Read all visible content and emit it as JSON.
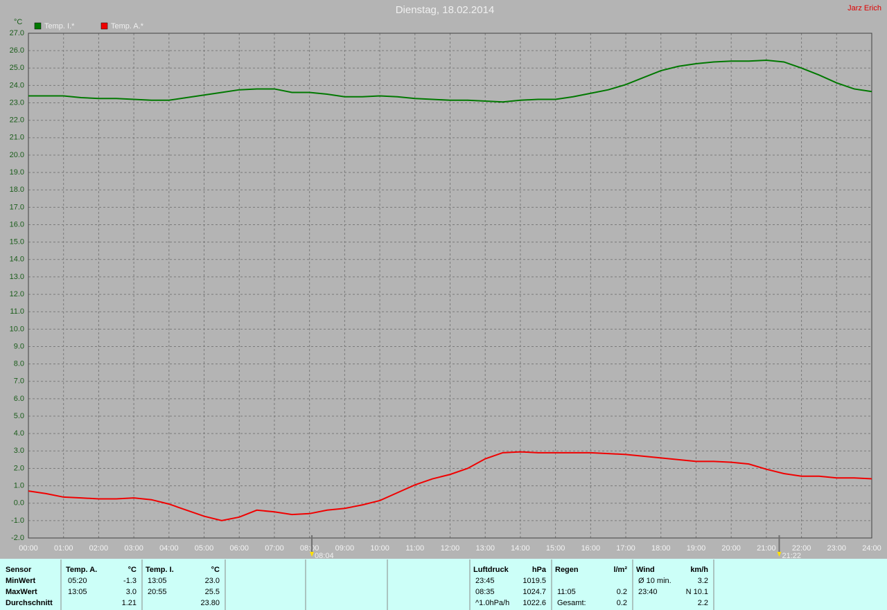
{
  "chart_data": {
    "type": "line",
    "title": "Dienstag, 18.02.2014",
    "author": "Jarz Erich",
    "y_label": "°C",
    "x": [
      0,
      0.5,
      1,
      1.5,
      2,
      2.5,
      3,
      3.5,
      4,
      4.5,
      5,
      5.5,
      6,
      6.5,
      7,
      7.5,
      8,
      8.5,
      9,
      9.5,
      10,
      10.5,
      11,
      11.5,
      12,
      12.5,
      13,
      13.5,
      14,
      14.5,
      15,
      15.5,
      16,
      16.5,
      17,
      17.5,
      18,
      18.5,
      19,
      19.5,
      20,
      20.5,
      21,
      21.5,
      22,
      22.5,
      23,
      23.5,
      24
    ],
    "series": [
      {
        "name": "Temp. I.*",
        "color": "#007800",
        "values": [
          23.4,
          23.4,
          23.4,
          23.3,
          23.25,
          23.25,
          23.2,
          23.15,
          23.15,
          23.3,
          23.45,
          23.6,
          23.75,
          23.8,
          23.8,
          23.6,
          23.6,
          23.5,
          23.35,
          23.35,
          23.4,
          23.35,
          23.25,
          23.2,
          23.15,
          23.15,
          23.1,
          23.05,
          23.15,
          23.2,
          23.2,
          23.35,
          23.55,
          23.75,
          24.05,
          24.45,
          24.85,
          25.1,
          25.25,
          25.35,
          25.4,
          25.4,
          25.45,
          25.35,
          25.0,
          24.6,
          24.15,
          23.8,
          23.65
        ]
      },
      {
        "name": "Temp. A.*",
        "color": "#f00000",
        "values": [
          0.7,
          0.55,
          0.35,
          0.3,
          0.25,
          0.25,
          0.3,
          0.2,
          -0.05,
          -0.4,
          -0.75,
          -1.0,
          -0.8,
          -0.4,
          -0.5,
          -0.65,
          -0.6,
          -0.4,
          -0.3,
          -0.1,
          0.15,
          0.6,
          1.05,
          1.4,
          1.65,
          2.0,
          2.55,
          2.9,
          2.95,
          2.9,
          2.9,
          2.9,
          2.9,
          2.85,
          2.8,
          2.7,
          2.6,
          2.5,
          2.4,
          2.4,
          2.35,
          2.25,
          1.95,
          1.7,
          1.55,
          1.55,
          1.45,
          1.45,
          1.4
        ]
      }
    ],
    "xlim": [
      0,
      24
    ],
    "xticks": [
      {
        "value": 0,
        "label": "00:00"
      },
      {
        "value": 1,
        "label": "01:00"
      },
      {
        "value": 2,
        "label": "02:00"
      },
      {
        "value": 3,
        "label": "03:00"
      },
      {
        "value": 4,
        "label": "04:00"
      },
      {
        "value": 5,
        "label": "05:00"
      },
      {
        "value": 6,
        "label": "06:00"
      },
      {
        "value": 7,
        "label": "07:00"
      },
      {
        "value": 8,
        "label": "08:00"
      },
      {
        "value": 9,
        "label": "09:00"
      },
      {
        "value": 10,
        "label": "10:00"
      },
      {
        "value": 11,
        "label": "11:00"
      },
      {
        "value": 12,
        "label": "12:00"
      },
      {
        "value": 13,
        "label": "13:00"
      },
      {
        "value": 14,
        "label": "14:00"
      },
      {
        "value": 15,
        "label": "15:00"
      },
      {
        "value": 16,
        "label": "16:00"
      },
      {
        "value": 17,
        "label": "17:00"
      },
      {
        "value": 18,
        "label": "18:00"
      },
      {
        "value": 19,
        "label": "19:00"
      },
      {
        "value": 20,
        "label": "20:00"
      },
      {
        "value": 21,
        "label": "21:00"
      },
      {
        "value": 22,
        "label": "22:00"
      },
      {
        "value": 23,
        "label": "23:00"
      },
      {
        "value": 24,
        "label": "24:00"
      }
    ],
    "ylim": [
      -2,
      27
    ],
    "yticks": [
      {
        "value": -2,
        "label": "-2.0"
      },
      {
        "value": -1,
        "label": "-1.0"
      },
      {
        "value": 0,
        "label": "0.0"
      },
      {
        "value": 1,
        "label": "1.0"
      },
      {
        "value": 2,
        "label": "2.0"
      },
      {
        "value": 3,
        "label": "3.0"
      },
      {
        "value": 4,
        "label": "4.0"
      },
      {
        "value": 5,
        "label": "5.0"
      },
      {
        "value": 6,
        "label": "6.0"
      },
      {
        "value": 7,
        "label": "7.0"
      },
      {
        "value": 8,
        "label": "8.0"
      },
      {
        "value": 9,
        "label": "9.0"
      },
      {
        "value": 10,
        "label": "10.0"
      },
      {
        "value": 11,
        "label": "11.0"
      },
      {
        "value": 12,
        "label": "12.0"
      },
      {
        "value": 13,
        "label": "13.0"
      },
      {
        "value": 14,
        "label": "14.0"
      },
      {
        "value": 15,
        "label": "15.0"
      },
      {
        "value": 16,
        "label": "16.0"
      },
      {
        "value": 17,
        "label": "17.0"
      },
      {
        "value": 18,
        "label": "18.0"
      },
      {
        "value": 19,
        "label": "19.0"
      },
      {
        "value": 20,
        "label": "20.0"
      },
      {
        "value": 21,
        "label": "21.0"
      },
      {
        "value": 22,
        "label": "22.0"
      },
      {
        "value": 23,
        "label": "23.0"
      },
      {
        "value": 24,
        "label": "24.0"
      },
      {
        "value": 25,
        "label": "25.0"
      },
      {
        "value": 26,
        "label": "26.0"
      },
      {
        "value": 27,
        "label": "27.0"
      }
    ],
    "grid": true,
    "markers": [
      {
        "x": 8.0667,
        "label": "08:04"
      },
      {
        "x": 21.3667,
        "label": "21:22"
      }
    ]
  },
  "table": {
    "row_labels": [
      "Sensor",
      "MinWert",
      "MaxWert",
      "Durchschnitt"
    ],
    "columns": [
      {
        "name": "Temp. A.",
        "unit": "°C",
        "rows": [
          [
            "05:20",
            "-1.3"
          ],
          [
            "13:05",
            "3.0"
          ],
          [
            null,
            "1.21"
          ]
        ]
      },
      {
        "name": "Temp. I.",
        "unit": "°C",
        "rows": [
          [
            "13:05",
            "23.0"
          ],
          [
            "20:55",
            "25.5"
          ],
          [
            null,
            "23.80"
          ]
        ]
      },
      {
        "name": "Luftdruck",
        "unit": "hPa",
        "rows": [
          [
            "23:45",
            "1019.5"
          ],
          [
            "08:35",
            "1024.7"
          ],
          [
            "^1.0hPa/h",
            "1022.6"
          ]
        ]
      },
      {
        "name": "Regen",
        "unit": "l/m²",
        "rows": [
          [
            null,
            null
          ],
          [
            "11:05",
            "0.2"
          ],
          [
            "Gesamt:",
            "0.2"
          ]
        ]
      },
      {
        "name": "Wind",
        "unit": "km/h",
        "rows": [
          [
            "Ø 10 min.",
            "3.2"
          ],
          [
            "23:40",
            "N 10.1"
          ],
          [
            null,
            "2.2"
          ]
        ]
      }
    ]
  }
}
